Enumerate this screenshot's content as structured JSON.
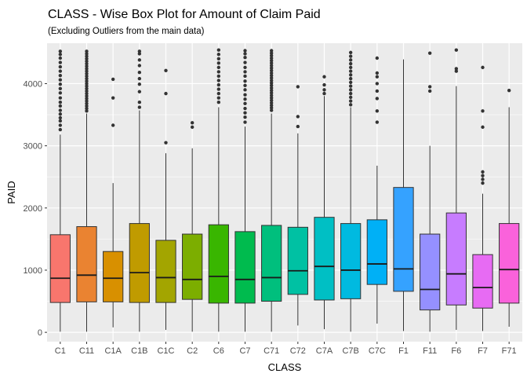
{
  "chart_data": {
    "type": "boxplot",
    "title": "CLASS - Wise Box Plot for Amount of Claim Paid",
    "subtitle": "(Excluding Outliers from the main data)",
    "xlabel": "CLASS",
    "ylabel": "PAID",
    "ylim": [
      -150,
      4650
    ],
    "yticks": [
      0,
      1000,
      2000,
      3000,
      4000
    ],
    "grid": true,
    "legend": "none",
    "panel_background": "#EBEBEB",
    "grid_color": "#FFFFFF",
    "outlier_color": "#333333",
    "categories": [
      "C1",
      "C11",
      "C1A",
      "C1B",
      "C1C",
      "C2",
      "C6",
      "C7",
      "C71",
      "C72",
      "C7A",
      "C7B",
      "C7C",
      "F1",
      "F11",
      "F6",
      "F7",
      "F71"
    ],
    "colors": [
      "#F8766D",
      "#EA8331",
      "#D89000",
      "#C09B00",
      "#A3A500",
      "#7CAE00",
      "#39B600",
      "#00BB4E",
      "#00BF7D",
      "#00C1A3",
      "#00BFC4",
      "#00BAE0",
      "#00B0F6",
      "#35A2FF",
      "#9590FF",
      "#C77CFF",
      "#E76BF3",
      "#FA62DB"
    ],
    "boxes": [
      {
        "min": 10,
        "q1": 480,
        "median": 870,
        "q3": 1570,
        "max": 3180
      },
      {
        "min": 10,
        "q1": 490,
        "median": 920,
        "q3": 1700,
        "max": 3520
      },
      {
        "min": 80,
        "q1": 490,
        "median": 870,
        "q3": 1300,
        "max": 2400
      },
      {
        "min": 10,
        "q1": 480,
        "median": 960,
        "q3": 1750,
        "max": 3570
      },
      {
        "min": 40,
        "q1": 480,
        "median": 880,
        "q3": 1480,
        "max": 2880
      },
      {
        "min": 10,
        "q1": 530,
        "median": 850,
        "q3": 1580,
        "max": 2960
      },
      {
        "min": 10,
        "q1": 470,
        "median": 900,
        "q3": 1730,
        "max": 3620
      },
      {
        "min": 10,
        "q1": 470,
        "median": 850,
        "q3": 1620,
        "max": 3310
      },
      {
        "min": 10,
        "q1": 500,
        "median": 880,
        "q3": 1720,
        "max": 3520
      },
      {
        "min": 110,
        "q1": 610,
        "median": 990,
        "q3": 1690,
        "max": 3200
      },
      {
        "min": 50,
        "q1": 520,
        "median": 1060,
        "q3": 1850,
        "max": 3800
      },
      {
        "min": 10,
        "q1": 540,
        "median": 1000,
        "q3": 1750,
        "max": 3620
      },
      {
        "min": 140,
        "q1": 770,
        "median": 1100,
        "q3": 1810,
        "max": 2680
      },
      {
        "min": 20,
        "q1": 660,
        "median": 1020,
        "q3": 2330,
        "max": 4390
      },
      {
        "min": 10,
        "q1": 360,
        "median": 690,
        "q3": 1580,
        "max": 3000
      },
      {
        "min": 40,
        "q1": 440,
        "median": 940,
        "q3": 1920,
        "max": 3960
      },
      {
        "min": 20,
        "q1": 390,
        "median": 720,
        "q3": 1250,
        "max": 2230
      },
      {
        "min": 90,
        "q1": 470,
        "median": 1010,
        "q3": 1750,
        "max": 3620
      }
    ],
    "outliers": [
      [
        3260,
        3330,
        3400,
        3450,
        3510,
        3570,
        3640,
        3700,
        3770,
        3850,
        3920,
        3990,
        4060,
        4130,
        4200,
        4270,
        4340,
        4410,
        4470,
        4520
      ],
      [
        3560,
        3600,
        3640,
        3680,
        3720,
        3760,
        3800,
        3840,
        3880,
        3920,
        3960,
        4000,
        4040,
        4080,
        4120,
        4160,
        4200,
        4240,
        4280,
        4320,
        4360,
        4400,
        4440,
        4480,
        4520
      ],
      [
        3330,
        3770,
        4070
      ],
      [
        3620,
        3700,
        3870,
        3990,
        4080,
        4180,
        4290,
        4380,
        4480,
        4520
      ],
      [
        3050,
        3840,
        4210
      ],
      [
        3300,
        3370
      ],
      [
        3700,
        3770,
        3840,
        3910,
        3980,
        4050,
        4120,
        4190,
        4260,
        4330,
        4400,
        4470,
        4540
      ],
      [
        3380,
        3460,
        3530,
        3600,
        3680,
        3750,
        3820,
        3900,
        3970,
        4040,
        4120,
        4190,
        4260,
        4340,
        4420,
        4480,
        4530
      ],
      [
        3570,
        3610,
        3650,
        3690,
        3730,
        3770,
        3810,
        3850,
        3890,
        3930,
        3970,
        4010,
        4050,
        4090,
        4130,
        4170,
        4210,
        4250,
        4290,
        4330,
        4370,
        4410,
        4450,
        4490,
        4530
      ],
      [
        3310,
        3470,
        3950
      ],
      [
        3840,
        3900,
        3980,
        4110
      ],
      [
        3660,
        3720,
        3780,
        3840,
        3900,
        3960,
        4020,
        4080,
        4140,
        4200,
        4260,
        4320,
        4380,
        4440,
        4500
      ],
      [
        3380,
        3560,
        3760,
        3880,
        4000,
        4110,
        4170,
        4410
      ],
      [],
      [
        3880,
        3950,
        4490
      ],
      [
        4200,
        4240,
        4540
      ],
      [
        2400,
        2460,
        2520,
        2580,
        3300,
        3560,
        4260
      ],
      [
        3890
      ]
    ]
  }
}
